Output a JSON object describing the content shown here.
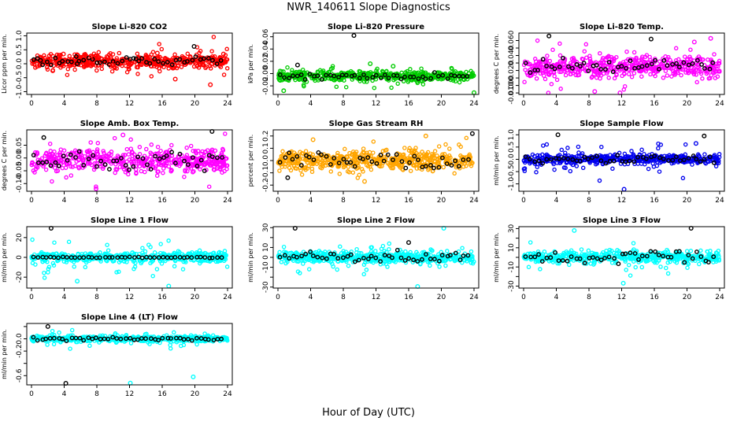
{
  "page_title": "NWR_140611  Slope Diagnostics",
  "x_axis_label": "Hour of Day (UTC)",
  "chart_data": [
    {
      "type": "scatter",
      "title": "Slope Li-820 CO2",
      "ylabel": "Licor ppm per min.",
      "xlim": [
        0,
        24
      ],
      "xticks": [
        0,
        4,
        8,
        12,
        16,
        20,
        24
      ],
      "ylim": [
        -1.1,
        1.1
      ],
      "yticks": [
        -1.0,
        -0.5,
        0.0,
        0.5,
        1.0
      ],
      "ytick_labels": [
        "-1.0",
        "-0.5",
        "0.0",
        "0.5",
        "1.0"
      ],
      "color": "#ff0000",
      "center": 0.1,
      "spread": 0.22,
      "outlier_spread": 0.55,
      "black_spread": 0.12,
      "series": [
        {
          "name": "",
          "x": [
            1.1,
            2.6,
            3.9,
            5.6,
            7.3,
            9.9,
            12.8,
            15.4,
            17.6,
            19.9,
            21.9,
            23.5
          ],
          "y": [
            0.12,
            -0.25,
            0.35,
            0.0,
            0.28,
            -0.05,
            0.18,
            0.38,
            -0.55,
            0.62,
            -0.75,
            0.35
          ]
        }
      ]
    },
    {
      "type": "scatter",
      "title": "Slope Li-820 Pressure",
      "ylabel": "kPa per min.",
      "xlim": [
        0,
        24
      ],
      "xticks": [
        0,
        4,
        8,
        12,
        16,
        20,
        24
      ],
      "ylim": [
        -0.034,
        0.066
      ],
      "yticks": [
        -0.02,
        0.0,
        0.02,
        0.04,
        0.06
      ],
      "ytick_labels": [
        "-0.02",
        "0.00",
        "0.02",
        "0.04",
        "0.06"
      ],
      "color": "#00cc00",
      "center": -0.004,
      "spread": 0.007,
      "outlier_spread": 0.016,
      "black_spread": 0.004,
      "series": [
        {
          "name": "",
          "x": [
            9.3,
            0.7,
            24.0,
            2.4,
            14.1,
            11.3
          ],
          "y": [
            0.062,
            -0.028,
            -0.031,
            0.014,
            0.012,
            0.016
          ]
        }
      ]
    },
    {
      "type": "scatter",
      "title": "Slope Li-820 Temp.",
      "ylabel": "degrees C per min.",
      "xlim": [
        0,
        24
      ],
      "xticks": [
        0,
        4,
        8,
        12,
        16,
        20,
        24
      ],
      "ylim": [
        -0.012,
        0.07
      ],
      "yticks": [
        -0.01,
        0.0,
        0.01,
        0.02,
        0.03,
        0.04,
        0.05,
        0.06
      ],
      "ytick_labels": [
        "-0.010",
        "0.000",
        "",
        "0.020",
        "",
        "0.040",
        "",
        "0.060"
      ],
      "color": "#ff00ff",
      "center": 0.025,
      "spread": 0.013,
      "outlier_spread": 0.026,
      "black_spread": 0.008,
      "series": [
        {
          "name": "",
          "x": [
            3.1,
            8.7,
            11.8,
            15.6,
            22.9,
            20.9
          ],
          "y": [
            0.066,
            -0.008,
            -0.01,
            0.062,
            0.063,
            0.058
          ]
        }
      ]
    },
    {
      "type": "scatter",
      "title": "Slope Amb. Box Temp.",
      "ylabel": "degrees C per min.",
      "xlim": [
        0,
        24
      ],
      "xticks": [
        0,
        4,
        8,
        12,
        16,
        20,
        24
      ],
      "ylim": [
        -0.13,
        0.11
      ],
      "yticks": [
        -0.1,
        -0.05,
        0.0,
        0.05
      ],
      "ytick_labels": [
        "-0.10",
        "-0.05",
        "0.00",
        "0.05"
      ],
      "color": "#ff00ff",
      "center": -0.01,
      "spread": 0.038,
      "outlier_spread": 0.075,
      "black_spread": 0.03,
      "series": [
        {
          "name": "",
          "x": [
            22.1,
            11.2,
            7.9,
            1.5
          ],
          "y": [
            0.105,
            0.09,
            -0.12,
            0.08
          ]
        }
      ]
    },
    {
      "type": "scatter",
      "title": "Slope Gas Stream RH",
      "ylabel": "percent per min.",
      "xlim": [
        0,
        24
      ],
      "xticks": [
        0,
        4,
        8,
        12,
        16,
        20,
        24
      ],
      "ylim": [
        -0.25,
        0.25
      ],
      "yticks": [
        -0.2,
        -0.1,
        0.0,
        0.1,
        0.2
      ],
      "ytick_labels": [
        "-0.2",
        "-0.1",
        "0.0",
        "0.1",
        "0.2"
      ],
      "color": "#ffa500",
      "center": 0.0,
      "spread": 0.07,
      "outlier_spread": 0.15,
      "black_spread": 0.06,
      "series": [
        {
          "name": "",
          "x": [
            23.8,
            18.1,
            10.6,
            1.2,
            4.3
          ],
          "y": [
            0.22,
            0.2,
            -0.17,
            -0.14,
            0.17
          ]
        }
      ]
    },
    {
      "type": "scatter",
      "title": "Slope Sample Flow",
      "ylabel": "ml/min per min.",
      "xlim": [
        0,
        24
      ],
      "xticks": [
        0,
        4,
        8,
        12,
        16,
        20,
        24
      ],
      "ylim": [
        -1.3,
        1.2
      ],
      "yticks": [
        -1.0,
        -0.5,
        0.0,
        0.5,
        1.0
      ],
      "ytick_labels": [
        "-1.0",
        "-0.5",
        "0.0",
        "0.5",
        "1.0"
      ],
      "color": "#0000ee",
      "center": 0.0,
      "spread": 0.17,
      "outlier_spread": 0.62,
      "black_spread": 0.12,
      "series": [
        {
          "name": "",
          "x": [
            22.1,
            21.1,
            12.3,
            4.2
          ],
          "y": [
            0.95,
            0.65,
            -1.22,
            1.0
          ]
        }
      ]
    },
    {
      "type": "scatter",
      "title": "Slope Line 1 Flow",
      "ylabel": "ml/min per min.",
      "xlim": [
        0,
        24
      ],
      "xticks": [
        0,
        4,
        8,
        12,
        16,
        20,
        24
      ],
      "ylim": [
        -31,
        31
      ],
      "yticks": [
        -20,
        0,
        20
      ],
      "ytick_labels": [
        "-20",
        "0",
        "20"
      ],
      "color": "#00ffff",
      "center": 0.0,
      "spread": 4.5,
      "outlier_spread": 14,
      "black_spread": 0.4,
      "series": [
        {
          "name": "",
          "x": [
            2.4,
            5.6,
            16.8
          ],
          "y": [
            30,
            -24,
            -29
          ]
        }
      ]
    },
    {
      "type": "scatter",
      "title": "Slope Line 2 Flow",
      "ylabel": "ml/min per min.",
      "xlim": [
        0,
        24
      ],
      "xticks": [
        0,
        4,
        8,
        12,
        16,
        20,
        24
      ],
      "ylim": [
        -31,
        31
      ],
      "yticks": [
        -30,
        -20,
        -10,
        0,
        10,
        20,
        30
      ],
      "ytick_labels": [
        "-30",
        "",
        "-10",
        "0",
        "10",
        "",
        "30"
      ],
      "color": "#00ffff",
      "center": 0.0,
      "spread": 5,
      "outlier_spread": 14,
      "black_spread": 5,
      "series": [
        {
          "name": "",
          "x": [
            2.1,
            17.1,
            20.3,
            16.0
          ],
          "y": [
            31,
            -30,
            31,
            15
          ]
        }
      ]
    },
    {
      "type": "scatter",
      "title": "Slope Line 3 Flow",
      "ylabel": "ml/min per min.",
      "xlim": [
        0,
        24
      ],
      "xticks": [
        0,
        4,
        8,
        12,
        16,
        20,
        24
      ],
      "ylim": [
        -32,
        32
      ],
      "yticks": [
        -30,
        -20,
        -10,
        0,
        10,
        20,
        30
      ],
      "ytick_labels": [
        "-30",
        "",
        "-10",
        "",
        "10",
        "",
        "30"
      ],
      "color": "#00ffff",
      "center": 0.0,
      "spread": 5,
      "outlier_spread": 14,
      "black_spread": 5,
      "series": [
        {
          "name": "",
          "x": [
            20.5,
            6.2,
            12.2
          ],
          "y": [
            31,
            28,
            -27
          ]
        }
      ]
    },
    {
      "type": "scatter",
      "title": "Slope Line 4 (LT) Flow",
      "ylabel": "ml/min per min.",
      "xlim": [
        0,
        24
      ],
      "xticks": [
        0,
        4,
        8,
        12,
        16,
        20,
        24
      ],
      "ylim": [
        -0.75,
        0.25
      ],
      "yticks": [
        -0.6,
        -0.4,
        -0.2,
        0.0,
        0.2
      ],
      "ytick_labels": [
        "-0.6",
        "",
        "-0.2",
        "0.0",
        ""
      ],
      "color": "#00ffff",
      "center": 0.0,
      "spread": 0.04,
      "outlier_spread": 0.12,
      "black_spread": 0.02,
      "series": [
        {
          "name": "",
          "x": [
            4.2,
            12.1,
            19.8,
            2.0
          ],
          "y": [
            -0.73,
            -0.72,
            -0.62,
            0.2
          ]
        }
      ]
    }
  ]
}
